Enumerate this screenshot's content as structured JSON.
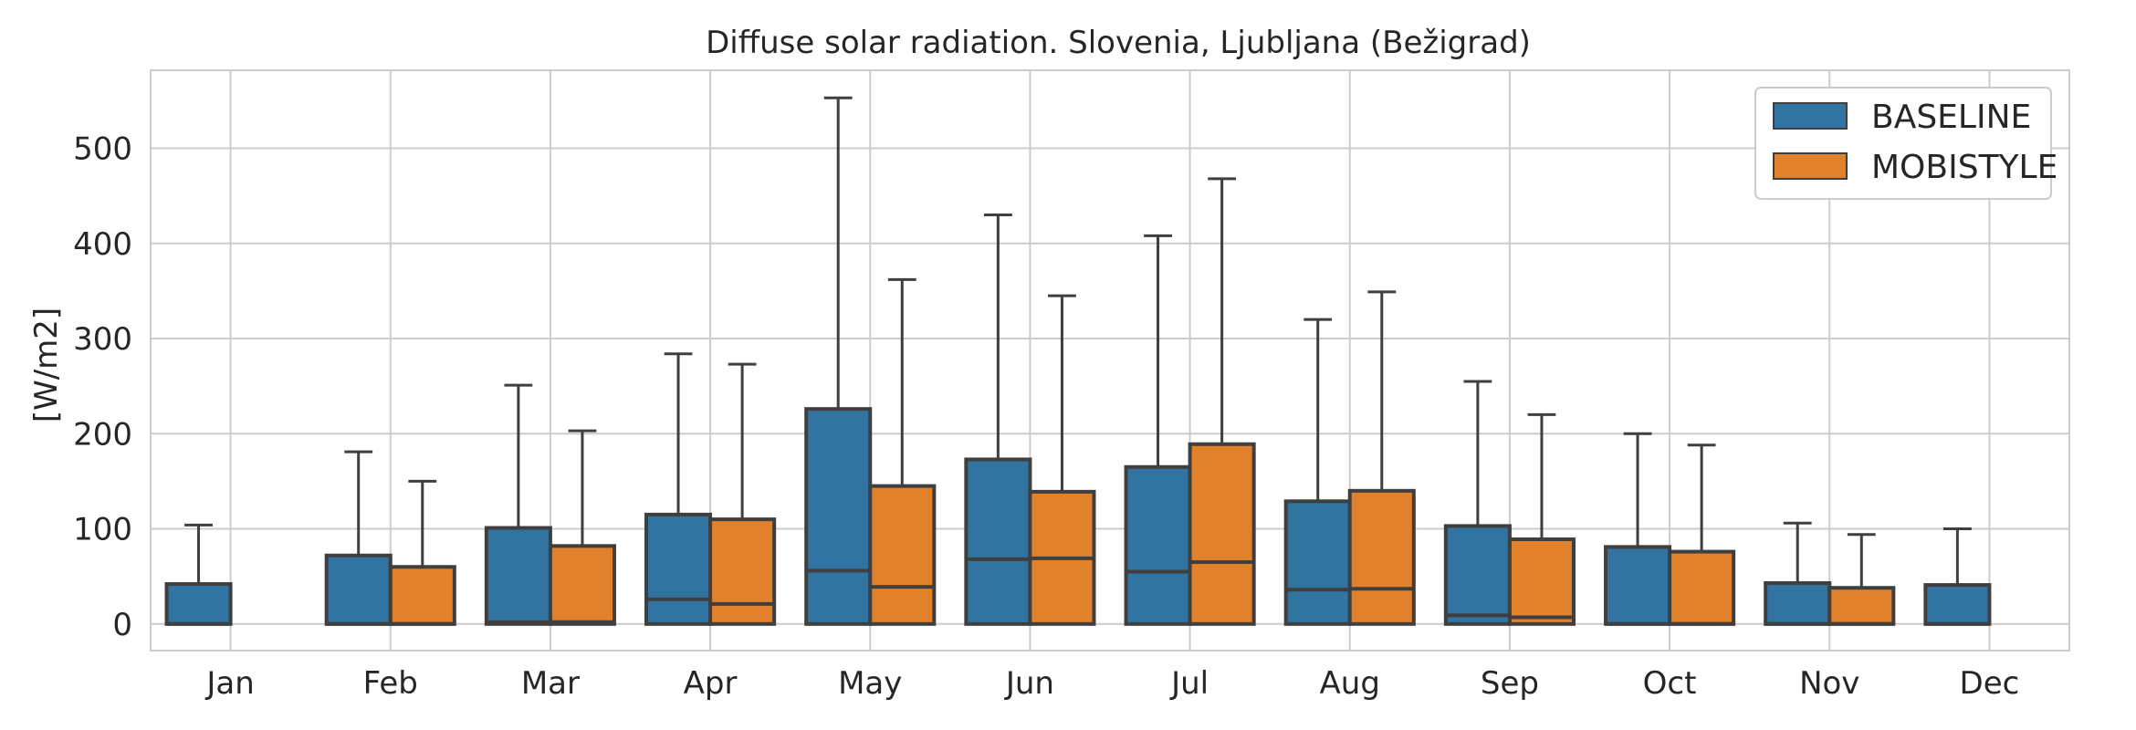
{
  "chart_data": {
    "type": "box",
    "title": "Diffuse solar radiation. Slovenia, Ljubljana (Bežigrad)",
    "xlabel": "",
    "ylabel": "[W/m2]",
    "ylim": [
      -28,
      582
    ],
    "yticks": [
      0,
      100,
      200,
      300,
      400,
      500
    ],
    "categories": [
      "Jan",
      "Feb",
      "Mar",
      "Apr",
      "May",
      "Jun",
      "Jul",
      "Aug",
      "Sep",
      "Oct",
      "Nov",
      "Dec"
    ],
    "grid": true,
    "legend": "top-right",
    "series": [
      {
        "name": "BASELINE",
        "color": "#3274a1",
        "boxes": [
          {
            "min": 0,
            "q1": 0,
            "median": 0,
            "q3": 42,
            "max": 104
          },
          {
            "min": 0,
            "q1": 0,
            "median": 0,
            "q3": 72,
            "max": 181
          },
          {
            "min": 0,
            "q1": 0,
            "median": 2,
            "q3": 101,
            "max": 251
          },
          {
            "min": 0,
            "q1": 0,
            "median": 26,
            "q3": 115,
            "max": 284
          },
          {
            "min": 0,
            "q1": 0,
            "median": 56,
            "q3": 226,
            "max": 553
          },
          {
            "min": 0,
            "q1": 0,
            "median": 68,
            "q3": 173,
            "max": 430
          },
          {
            "min": 0,
            "q1": 0,
            "median": 55,
            "q3": 165,
            "max": 408
          },
          {
            "min": 0,
            "q1": 0,
            "median": 36,
            "q3": 129,
            "max": 320
          },
          {
            "min": 0,
            "q1": 0,
            "median": 9,
            "q3": 103,
            "max": 255
          },
          {
            "min": 0,
            "q1": 0,
            "median": 0,
            "q3": 81,
            "max": 200
          },
          {
            "min": 0,
            "q1": 0,
            "median": 0,
            "q3": 43,
            "max": 106
          },
          {
            "min": 0,
            "q1": 0,
            "median": 0,
            "q3": 41,
            "max": 100
          }
        ]
      },
      {
        "name": "MOBISTYLE",
        "color": "#e1812c",
        "boxes": [
          null,
          {
            "min": 0,
            "q1": 0,
            "median": 0,
            "q3": 60,
            "max": 150
          },
          {
            "min": 0,
            "q1": 0,
            "median": 2,
            "q3": 82,
            "max": 203
          },
          {
            "min": 0,
            "q1": 0,
            "median": 21,
            "q3": 110,
            "max": 273
          },
          {
            "min": 0,
            "q1": 0,
            "median": 39,
            "q3": 145,
            "max": 362
          },
          {
            "min": 0,
            "q1": 0,
            "median": 69,
            "q3": 139,
            "max": 345
          },
          {
            "min": 0,
            "q1": 0,
            "median": 65,
            "q3": 189,
            "max": 468
          },
          {
            "min": 0,
            "q1": 0,
            "median": 37,
            "q3": 140,
            "max": 349
          },
          {
            "min": 0,
            "q1": 0,
            "median": 7,
            "q3": 89,
            "max": 220
          },
          {
            "min": 0,
            "q1": 0,
            "median": 0,
            "q3": 76,
            "max": 188
          },
          {
            "min": 0,
            "q1": 0,
            "median": 0,
            "q3": 38,
            "max": 94
          },
          null
        ]
      }
    ]
  }
}
